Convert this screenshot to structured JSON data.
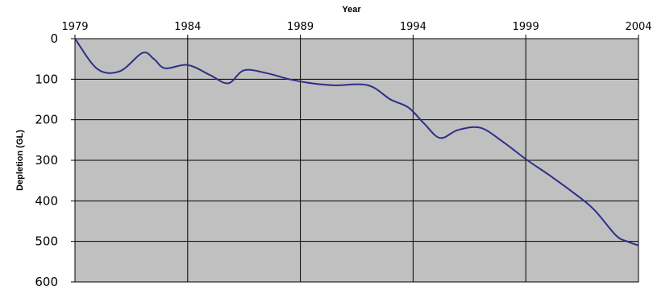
{
  "chart_data": {
    "type": "line",
    "title": "",
    "xlabel": "Year",
    "ylabel": "Depletion (GL)",
    "x_axis_position": "top",
    "y_axis_inverted": true,
    "xlim": [
      1979,
      2004
    ],
    "ylim": [
      0,
      600
    ],
    "x_ticks": [
      1979,
      1984,
      1989,
      1994,
      1999,
      2004
    ],
    "x_tick_labels": [
      "1979",
      "1984",
      "1989",
      "1994",
      "1999",
      "2004"
    ],
    "y_ticks": [
      0,
      100,
      200,
      300,
      400,
      500,
      600
    ],
    "y_tick_labels": [
      "0",
      "100",
      "200",
      "300",
      "400",
      "500",
      "600"
    ],
    "grid": true,
    "legend": "none",
    "colors": {
      "plot_background": "#c0c0c0",
      "line": "#2e2e8a",
      "grid": "#000000"
    },
    "series": [
      {
        "x": [
          1979,
          1980,
          1981,
          1982,
          1982.5,
          1983,
          1984,
          1985,
          1985.8,
          1986.5,
          1987.5,
          1988.5,
          1989.5,
          1990.5,
          1992,
          1993,
          1993.8,
          1994.5,
          1995.2,
          1996,
          1997,
          1998,
          1999,
          2000,
          2001,
          2002,
          2003,
          2003.5,
          2004
        ],
        "y": [
          0,
          75,
          80,
          35,
          50,
          73,
          65,
          90,
          110,
          78,
          85,
          100,
          110,
          115,
          115,
          150,
          170,
          210,
          245,
          225,
          220,
          255,
          297,
          335,
          375,
          420,
          485,
          500,
          510
        ]
      }
    ]
  }
}
